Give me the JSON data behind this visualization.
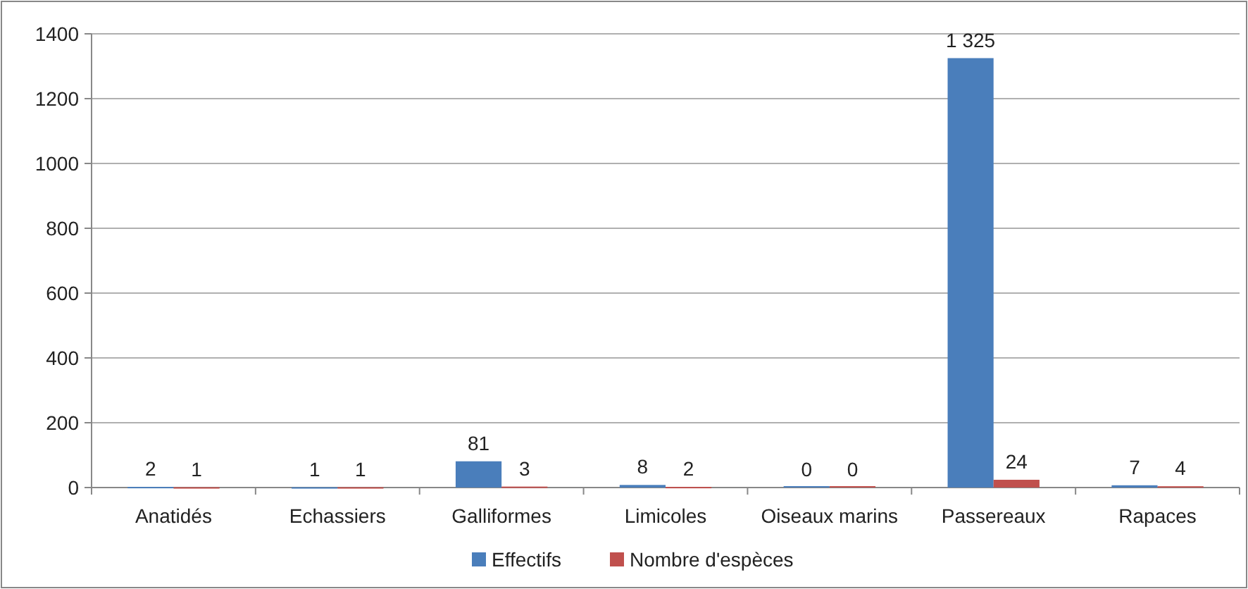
{
  "chart_data": {
    "type": "bar",
    "categories": [
      "Anatidés",
      "Echassiers",
      "Galliformes",
      "Limicoles",
      "Oiseaux marins",
      "Passereaux",
      "Rapaces"
    ],
    "series": [
      {
        "name": "Effectifs",
        "color": "#4a7ebb",
        "values": [
          2,
          1,
          81,
          8,
          0,
          1325,
          7
        ],
        "value_labels": [
          "2",
          "1",
          "81",
          "8",
          "0",
          "1 325",
          "7"
        ]
      },
      {
        "name": "Nombre d'espèces",
        "color": "#c0504d",
        "values": [
          1,
          1,
          3,
          2,
          0,
          24,
          4
        ],
        "value_labels": [
          "1",
          "1",
          "3",
          "2",
          "0",
          "24",
          "4"
        ]
      }
    ],
    "ylim": [
      0,
      1400
    ],
    "yticks": [
      0,
      200,
      400,
      600,
      800,
      1000,
      1200,
      1400
    ],
    "grid": "y",
    "legend": "bottom"
  }
}
